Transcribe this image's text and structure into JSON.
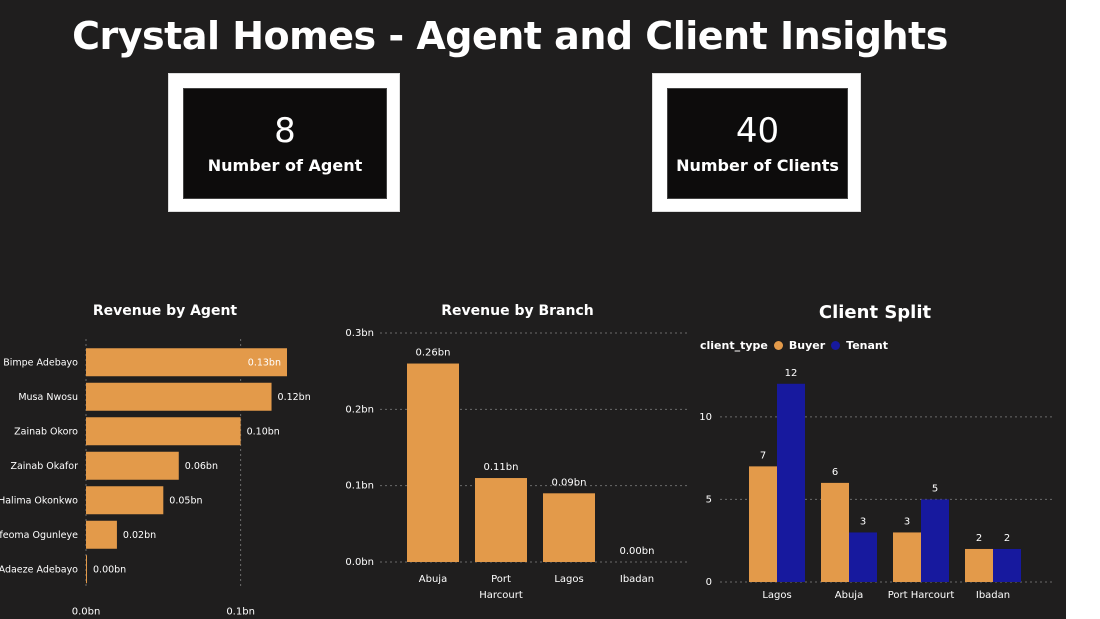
{
  "dashboard": {
    "title": "Crystal Homes - Agent and Client Insights"
  },
  "kpis": [
    {
      "value": "8",
      "label": "Number of Agent"
    },
    {
      "value": "40",
      "label": "Number of Clients"
    }
  ],
  "colors": {
    "background": "#1f1e1e",
    "buyer": "#e39a4a",
    "tenant": "#17199e",
    "bar": "#e39a4a"
  },
  "chart_data": [
    {
      "type": "bar",
      "orientation": "horizontal",
      "title": "Revenue by Agent",
      "categories": [
        "Bimpe Adebayo",
        "Musa Nwosu",
        "Zainab Okoro",
        "Zainab Okafor",
        "Halima Okonkwo",
        "Ifeoma Ogunleye",
        "Adaeze Adebayo"
      ],
      "values": [
        0.13,
        0.12,
        0.1,
        0.06,
        0.05,
        0.02,
        0.0
      ],
      "data_labels": [
        "0.13bn",
        "0.12bn",
        "0.10bn",
        "0.06bn",
        "0.05bn",
        "0.02bn",
        "0.00bn"
      ],
      "x_ticks": [
        "0.0bn",
        "0.1bn"
      ],
      "xlim": [
        0,
        0.135
      ],
      "grid": true
    },
    {
      "type": "bar",
      "title": "Revenue by Branch",
      "categories": [
        "Abuja",
        "Port Harcourt",
        "Lagos",
        "Ibadan"
      ],
      "values": [
        0.26,
        0.11,
        0.09,
        0.0
      ],
      "data_labels": [
        "0.26bn",
        "0.11bn",
        "0.09bn",
        "0.00bn"
      ],
      "y_ticks": [
        "0.0bn",
        "0.1bn",
        "0.2bn",
        "0.3bn"
      ],
      "ylim": [
        0,
        0.3
      ],
      "grid": true
    },
    {
      "type": "bar",
      "title": "Client Split",
      "legend_title": "client_type",
      "legend_position": "top-left",
      "categories": [
        "Lagos",
        "Abuja",
        "Port Harcourt",
        "Ibadan"
      ],
      "series": [
        {
          "name": "Buyer",
          "values": [
            7,
            6,
            3,
            2
          ]
        },
        {
          "name": "Tenant",
          "values": [
            12,
            3,
            5,
            2
          ]
        }
      ],
      "y_ticks": [
        "0",
        "5",
        "10"
      ],
      "ylim": [
        0,
        13.5
      ],
      "grid": true
    }
  ]
}
